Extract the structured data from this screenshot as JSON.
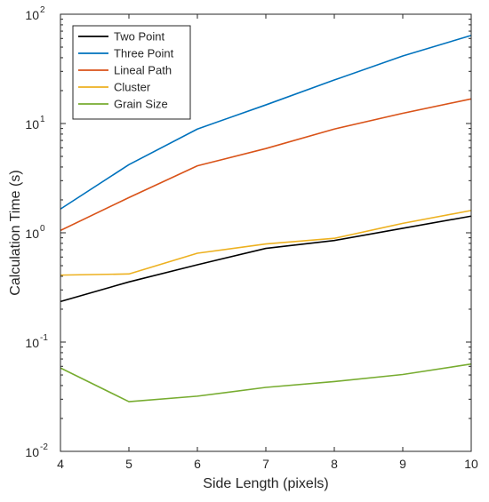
{
  "chart_data": {
    "type": "line",
    "title": "",
    "xlabel": "Side Length (pixels)",
    "ylabel": "Calculation Time (s)",
    "xlim": [
      4,
      10
    ],
    "ylim": [
      0.01,
      100
    ],
    "yscale": "log",
    "grid": false,
    "legend_position": "top-left",
    "x_ticks": [
      4,
      5,
      6,
      7,
      8,
      9,
      10
    ],
    "y_ticks": [
      {
        "value": 0.01,
        "base": "10",
        "exp": "-2"
      },
      {
        "value": 0.1,
        "base": "10",
        "exp": "-1"
      },
      {
        "value": 1,
        "base": "10",
        "exp": "0"
      },
      {
        "value": 10,
        "base": "10",
        "exp": "1"
      },
      {
        "value": 100,
        "base": "10",
        "exp": "2"
      }
    ],
    "x": [
      4,
      5,
      6,
      7,
      8,
      9,
      10
    ],
    "series": [
      {
        "name": "Two Point",
        "color": "#000000",
        "values": [
          0.235,
          0.355,
          0.51,
          0.72,
          0.85,
          1.1,
          1.42
        ]
      },
      {
        "name": "Three Point",
        "color": "#0072BD",
        "values": [
          1.65,
          4.2,
          8.9,
          14.8,
          25.0,
          41.5,
          64.0
        ]
      },
      {
        "name": "Lineal Path",
        "color": "#D95319",
        "values": [
          1.05,
          2.1,
          4.1,
          5.9,
          8.9,
          12.4,
          16.8
        ]
      },
      {
        "name": "Cluster",
        "color": "#EDB120",
        "values": [
          0.41,
          0.42,
          0.65,
          0.79,
          0.89,
          1.22,
          1.6
        ]
      },
      {
        "name": "Grain Size",
        "color": "#77AC30",
        "values": [
          0.058,
          0.0285,
          0.032,
          0.0385,
          0.0435,
          0.0505,
          0.063
        ]
      }
    ]
  }
}
